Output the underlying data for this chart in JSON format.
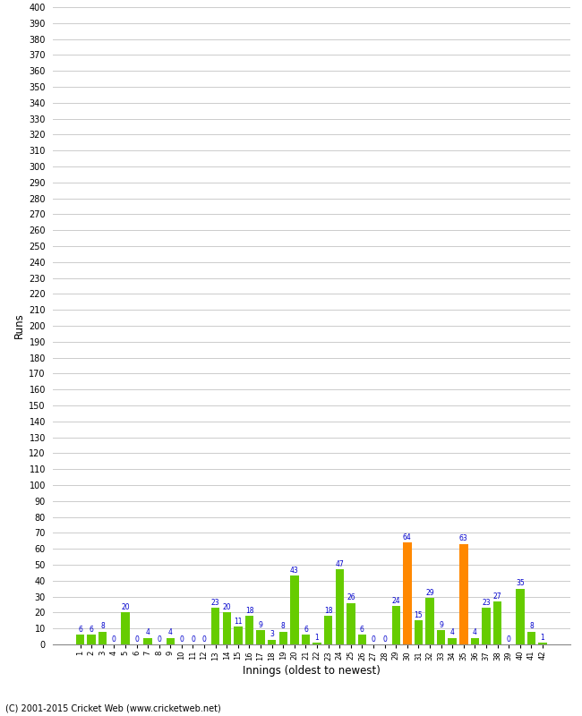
{
  "xlabel": "Innings (oldest to newest)",
  "ylabel": "Runs",
  "innings": [
    1,
    2,
    3,
    4,
    5,
    6,
    7,
    8,
    9,
    10,
    11,
    12,
    13,
    14,
    15,
    16,
    17,
    18,
    19,
    20,
    21,
    22,
    23,
    24,
    25,
    26,
    27,
    28,
    29,
    30,
    31,
    32,
    33,
    34,
    35,
    36,
    37,
    38,
    39,
    40,
    41,
    42
  ],
  "values": [
    6,
    6,
    8,
    0,
    20,
    0,
    4,
    0,
    4,
    0,
    0,
    0,
    23,
    20,
    11,
    18,
    9,
    3,
    8,
    43,
    6,
    1,
    18,
    47,
    26,
    6,
    0,
    0,
    24,
    64,
    15,
    29,
    9,
    4,
    63,
    4,
    23,
    27,
    0,
    35,
    8,
    1
  ],
  "orange_innings": [
    30,
    35
  ],
  "ylim": [
    0,
    400
  ],
  "bar_color_green": "#66cc00",
  "bar_color_orange": "#ff8800",
  "label_color": "#0000cc",
  "background_color": "#ffffff",
  "grid_color": "#cccccc",
  "footer": "(C) 2001-2015 Cricket Web (www.cricketweb.net)"
}
